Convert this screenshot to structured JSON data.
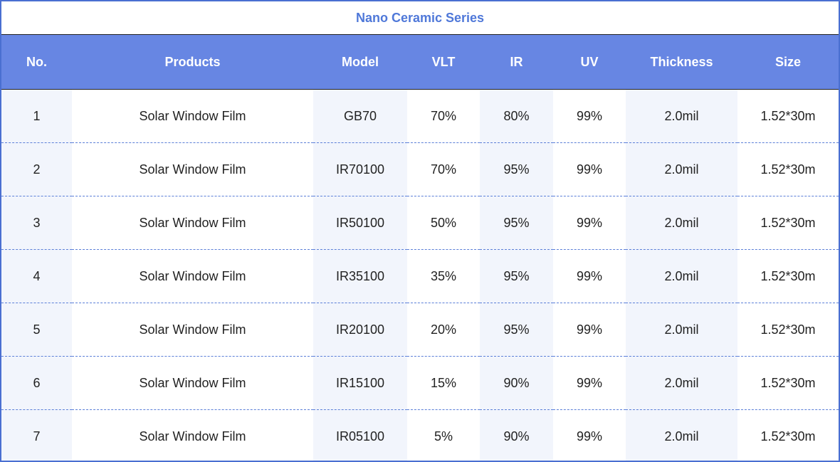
{
  "title": "Nano Ceramic Series",
  "colors": {
    "header_bg": "#6786e3",
    "title_text": "#4f78d9",
    "frame_border": "#4a6fd1",
    "shaded_column": "#f2f5fc",
    "row_divider": "#5b7fd8"
  },
  "table": {
    "headers": [
      "No.",
      "Products",
      "Model",
      "VLT",
      "IR",
      "UV",
      "Thickness",
      "Size"
    ],
    "rows": [
      [
        "1",
        "Solar Window Film",
        "GB70",
        "70%",
        "80%",
        "99%",
        "2.0mil",
        "1.52*30m"
      ],
      [
        "2",
        "Solar Window Film",
        "IR70100",
        "70%",
        "95%",
        "99%",
        "2.0mil",
        "1.52*30m"
      ],
      [
        "3",
        "Solar Window Film",
        "IR50100",
        "50%",
        "95%",
        "99%",
        "2.0mil",
        "1.52*30m"
      ],
      [
        "4",
        "Solar Window Film",
        "IR35100",
        "35%",
        "95%",
        "99%",
        "2.0mil",
        "1.52*30m"
      ],
      [
        "5",
        "Solar Window Film",
        "IR20100",
        "20%",
        "95%",
        "99%",
        "2.0mil",
        "1.52*30m"
      ],
      [
        "6",
        "Solar Window Film",
        "IR15100",
        "15%",
        "90%",
        "99%",
        "2.0mil",
        "1.52*30m"
      ],
      [
        "7",
        "Solar Window Film",
        "IR05100",
        "5%",
        "90%",
        "99%",
        "2.0mil",
        "1.52*30m"
      ]
    ]
  }
}
